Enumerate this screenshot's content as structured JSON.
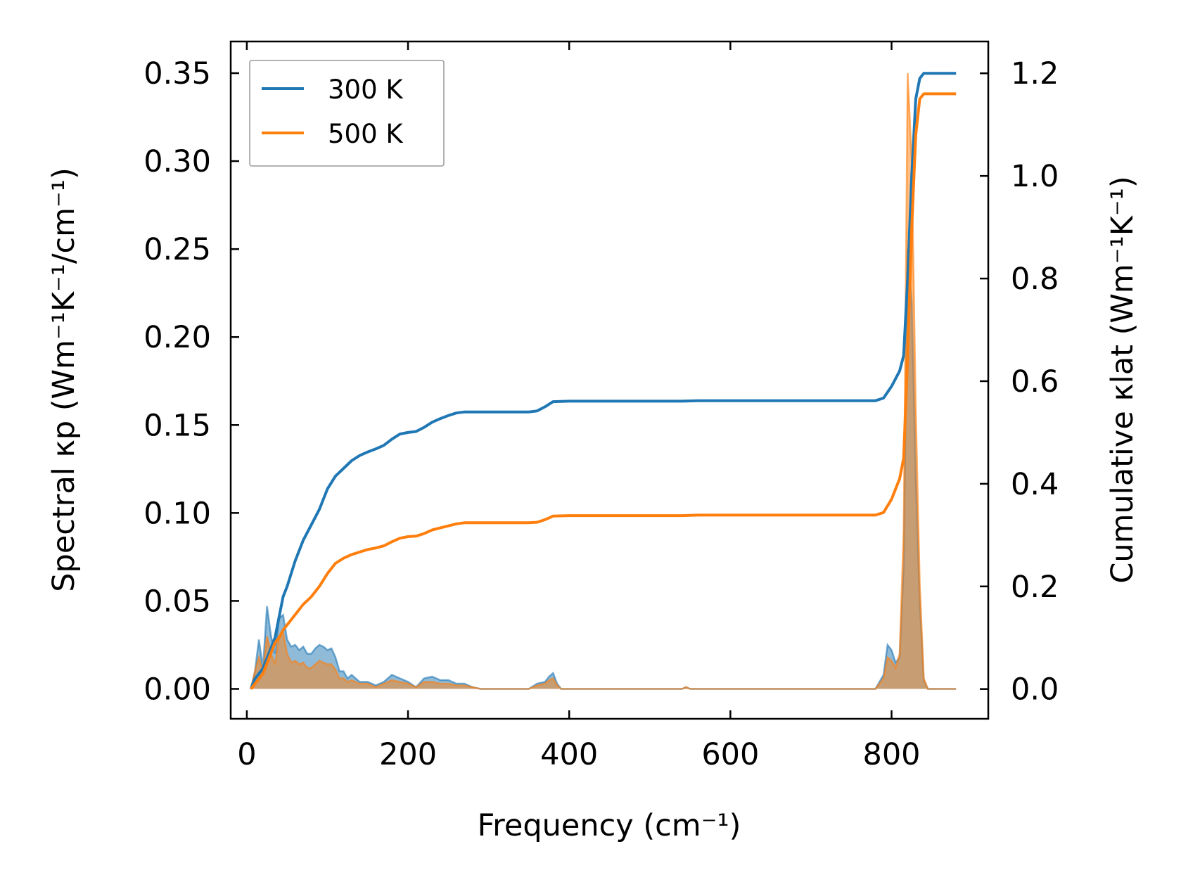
{
  "chart_data": {
    "type": "line",
    "xlabel": "Frequency (cm⁻¹)",
    "ylabel_left": "Spectral κp (Wm⁻¹K⁻¹/cm⁻¹)",
    "ylabel_right": "Cumulative κlat (Wm⁻¹K⁻¹)",
    "xlim": [
      -20,
      920
    ],
    "ylim_left": [
      -0.017,
      0.368
    ],
    "ylim_right": [
      -0.058,
      1.262
    ],
    "xticks": [
      0,
      200,
      400,
      600,
      800
    ],
    "xtick_labels": [
      "0",
      "200",
      "400",
      "600",
      "800"
    ],
    "yticks_left": [
      0.0,
      0.05,
      0.1,
      0.15,
      0.2,
      0.25,
      0.3,
      0.35
    ],
    "ytick_labels_left": [
      "0.00",
      "0.05",
      "0.10",
      "0.15",
      "0.20",
      "0.25",
      "0.30",
      "0.35"
    ],
    "yticks_right": [
      0.0,
      0.2,
      0.4,
      0.6,
      0.8,
      1.0,
      1.2
    ],
    "ytick_labels_right": [
      "0.0",
      "0.2",
      "0.4",
      "0.6",
      "0.8",
      "1.0",
      "1.2"
    ],
    "legend": {
      "position": "top-left",
      "entries": [
        "300 K",
        "500 K"
      ]
    },
    "series": [
      {
        "name": "300 K",
        "color": "#1f77b4",
        "cumulative": [
          [
            5,
            0.0
          ],
          [
            10,
            0.02
          ],
          [
            15,
            0.03
          ],
          [
            20,
            0.04
          ],
          [
            25,
            0.06
          ],
          [
            30,
            0.08
          ],
          [
            35,
            0.1
          ],
          [
            40,
            0.14
          ],
          [
            45,
            0.18
          ],
          [
            50,
            0.2
          ],
          [
            60,
            0.25
          ],
          [
            70,
            0.29
          ],
          [
            80,
            0.32
          ],
          [
            90,
            0.35
          ],
          [
            100,
            0.39
          ],
          [
            110,
            0.415
          ],
          [
            120,
            0.43
          ],
          [
            130,
            0.445
          ],
          [
            140,
            0.455
          ],
          [
            150,
            0.462
          ],
          [
            160,
            0.468
          ],
          [
            170,
            0.475
          ],
          [
            180,
            0.487
          ],
          [
            190,
            0.497
          ],
          [
            200,
            0.5
          ],
          [
            210,
            0.502
          ],
          [
            220,
            0.51
          ],
          [
            230,
            0.52
          ],
          [
            240,
            0.527
          ],
          [
            250,
            0.533
          ],
          [
            260,
            0.538
          ],
          [
            270,
            0.54
          ],
          [
            300,
            0.54
          ],
          [
            350,
            0.54
          ],
          [
            360,
            0.542
          ],
          [
            370,
            0.55
          ],
          [
            380,
            0.56
          ],
          [
            400,
            0.561
          ],
          [
            500,
            0.561
          ],
          [
            540,
            0.561
          ],
          [
            560,
            0.562
          ],
          [
            700,
            0.562
          ],
          [
            780,
            0.562
          ],
          [
            790,
            0.567
          ],
          [
            800,
            0.59
          ],
          [
            810,
            0.62
          ],
          [
            815,
            0.65
          ],
          [
            820,
            0.8
          ],
          [
            825,
            1.0
          ],
          [
            830,
            1.15
          ],
          [
            835,
            1.19
          ],
          [
            840,
            1.2
          ],
          [
            860,
            1.2
          ],
          [
            880,
            1.2
          ]
        ],
        "spectral": [
          [
            5,
            0.0
          ],
          [
            10,
            0.01
          ],
          [
            15,
            0.028
          ],
          [
            20,
            0.012
          ],
          [
            25,
            0.047
          ],
          [
            30,
            0.03
          ],
          [
            35,
            0.02
          ],
          [
            40,
            0.04
          ],
          [
            45,
            0.042
          ],
          [
            50,
            0.028
          ],
          [
            55,
            0.024
          ],
          [
            60,
            0.025
          ],
          [
            65,
            0.022
          ],
          [
            70,
            0.024
          ],
          [
            75,
            0.02
          ],
          [
            80,
            0.02
          ],
          [
            85,
            0.023
          ],
          [
            90,
            0.025
          ],
          [
            95,
            0.024
          ],
          [
            100,
            0.022
          ],
          [
            105,
            0.023
          ],
          [
            110,
            0.018
          ],
          [
            115,
            0.01
          ],
          [
            120,
            0.01
          ],
          [
            125,
            0.006
          ],
          [
            130,
            0.008
          ],
          [
            140,
            0.004
          ],
          [
            150,
            0.004
          ],
          [
            160,
            0.002
          ],
          [
            170,
            0.004
          ],
          [
            180,
            0.008
          ],
          [
            190,
            0.006
          ],
          [
            200,
            0.004
          ],
          [
            210,
            0.001
          ],
          [
            220,
            0.006
          ],
          [
            230,
            0.007
          ],
          [
            240,
            0.005
          ],
          [
            250,
            0.005
          ],
          [
            260,
            0.003
          ],
          [
            270,
            0.003
          ],
          [
            280,
            0.001
          ],
          [
            290,
            0.0
          ],
          [
            350,
            0.0
          ],
          [
            360,
            0.003
          ],
          [
            370,
            0.004
          ],
          [
            375,
            0.007
          ],
          [
            380,
            0.009
          ],
          [
            385,
            0.003
          ],
          [
            390,
            0.0
          ],
          [
            540,
            0.0
          ],
          [
            545,
            0.001
          ],
          [
            550,
            0.0
          ],
          [
            780,
            0.0
          ],
          [
            790,
            0.008
          ],
          [
            795,
            0.025
          ],
          [
            800,
            0.022
          ],
          [
            805,
            0.015
          ],
          [
            810,
            0.018
          ],
          [
            815,
            0.07
          ],
          [
            820,
            0.25
          ],
          [
            825,
            0.22
          ],
          [
            830,
            0.12
          ],
          [
            835,
            0.05
          ],
          [
            840,
            0.005
          ],
          [
            845,
            0.0
          ],
          [
            880,
            0.0
          ]
        ]
      },
      {
        "name": "500 K",
        "color": "#ff7f0e",
        "cumulative": [
          [
            5,
            0.0
          ],
          [
            10,
            0.01
          ],
          [
            15,
            0.02
          ],
          [
            20,
            0.03
          ],
          [
            25,
            0.05
          ],
          [
            30,
            0.07
          ],
          [
            35,
            0.09
          ],
          [
            40,
            0.1
          ],
          [
            45,
            0.115
          ],
          [
            50,
            0.125
          ],
          [
            60,
            0.145
          ],
          [
            70,
            0.165
          ],
          [
            80,
            0.18
          ],
          [
            90,
            0.2
          ],
          [
            100,
            0.225
          ],
          [
            110,
            0.245
          ],
          [
            120,
            0.255
          ],
          [
            130,
            0.262
          ],
          [
            140,
            0.267
          ],
          [
            150,
            0.272
          ],
          [
            160,
            0.275
          ],
          [
            170,
            0.279
          ],
          [
            180,
            0.287
          ],
          [
            190,
            0.294
          ],
          [
            200,
            0.297
          ],
          [
            210,
            0.298
          ],
          [
            220,
            0.303
          ],
          [
            230,
            0.31
          ],
          [
            240,
            0.314
          ],
          [
            250,
            0.318
          ],
          [
            260,
            0.322
          ],
          [
            270,
            0.324
          ],
          [
            300,
            0.324
          ],
          [
            350,
            0.324
          ],
          [
            360,
            0.325
          ],
          [
            370,
            0.33
          ],
          [
            380,
            0.337
          ],
          [
            400,
            0.338
          ],
          [
            540,
            0.338
          ],
          [
            560,
            0.339
          ],
          [
            780,
            0.339
          ],
          [
            790,
            0.344
          ],
          [
            800,
            0.37
          ],
          [
            810,
            0.41
          ],
          [
            815,
            0.45
          ],
          [
            820,
            0.65
          ],
          [
            825,
            0.9
          ],
          [
            830,
            1.08
          ],
          [
            835,
            1.15
          ],
          [
            840,
            1.16
          ],
          [
            860,
            1.16
          ],
          [
            880,
            1.16
          ]
        ],
        "spectral": [
          [
            5,
            0.0
          ],
          [
            10,
            0.01
          ],
          [
            15,
            0.018
          ],
          [
            20,
            0.01
          ],
          [
            25,
            0.03
          ],
          [
            30,
            0.02
          ],
          [
            35,
            0.014
          ],
          [
            40,
            0.03
          ],
          [
            45,
            0.032
          ],
          [
            50,
            0.02
          ],
          [
            55,
            0.015
          ],
          [
            60,
            0.016
          ],
          [
            65,
            0.014
          ],
          [
            70,
            0.015
          ],
          [
            75,
            0.012
          ],
          [
            80,
            0.012
          ],
          [
            85,
            0.014
          ],
          [
            90,
            0.016
          ],
          [
            95,
            0.015
          ],
          [
            100,
            0.014
          ],
          [
            105,
            0.014
          ],
          [
            110,
            0.011
          ],
          [
            115,
            0.006
          ],
          [
            120,
            0.006
          ],
          [
            125,
            0.004
          ],
          [
            130,
            0.005
          ],
          [
            140,
            0.003
          ],
          [
            150,
            0.003
          ],
          [
            160,
            0.001
          ],
          [
            170,
            0.003
          ],
          [
            180,
            0.005
          ],
          [
            190,
            0.004
          ],
          [
            200,
            0.003
          ],
          [
            210,
            0.001
          ],
          [
            220,
            0.004
          ],
          [
            230,
            0.004
          ],
          [
            240,
            0.003
          ],
          [
            250,
            0.003
          ],
          [
            260,
            0.002
          ],
          [
            270,
            0.002
          ],
          [
            280,
            0.001
          ],
          [
            290,
            0.0
          ],
          [
            350,
            0.0
          ],
          [
            360,
            0.002
          ],
          [
            370,
            0.003
          ],
          [
            375,
            0.005
          ],
          [
            380,
            0.006
          ],
          [
            385,
            0.002
          ],
          [
            390,
            0.0
          ],
          [
            540,
            0.0
          ],
          [
            545,
            0.001
          ],
          [
            550,
            0.0
          ],
          [
            780,
            0.0
          ],
          [
            790,
            0.006
          ],
          [
            795,
            0.018
          ],
          [
            800,
            0.016
          ],
          [
            805,
            0.012
          ],
          [
            810,
            0.02
          ],
          [
            815,
            0.09
          ],
          [
            820,
            0.35
          ],
          [
            825,
            0.3
          ],
          [
            830,
            0.16
          ],
          [
            835,
            0.06
          ],
          [
            840,
            0.006
          ],
          [
            845,
            0.0
          ],
          [
            880,
            0.0
          ]
        ]
      }
    ]
  }
}
